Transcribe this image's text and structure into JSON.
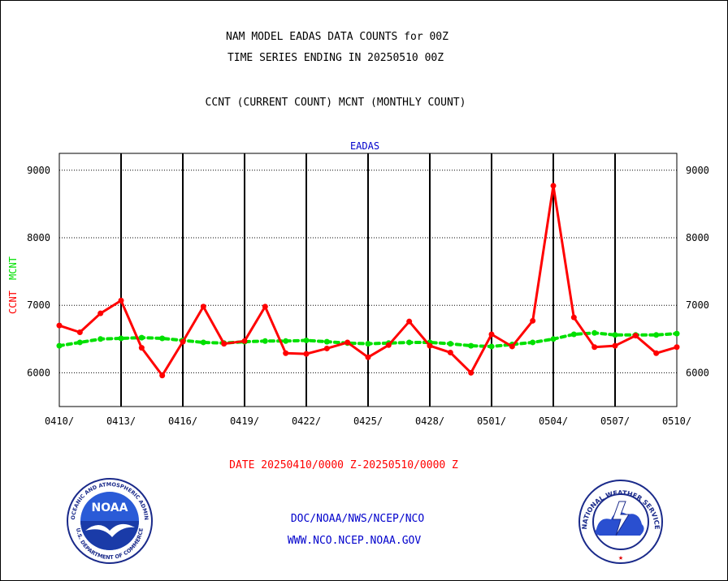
{
  "header": {
    "title_line1": "NAM MODEL EADAS DATA COUNTS for 00Z",
    "title_line2": "TIME SERIES ENDING IN 20250510 00Z",
    "subtitle": "CCNT (CURRENT COUNT) MCNT (MONTHLY COUNT)"
  },
  "footer": {
    "date_range": "DATE 20250410/0000 Z-20250510/0000 Z",
    "org_path": "DOC/NOAA/NWS/NCEP/NCO",
    "website": "WWW.NCO.NCEP.NOAA.GOV"
  },
  "logos": {
    "noaa_text": "NOAA",
    "noaa_ring_text": "NATIONAL OCEANIC AND ATMOSPHERIC ADMINISTRATION",
    "noaa_ring_text_bottom": "U.S. DEPARTMENT OF COMMERCE",
    "nws_ring_text": "NATIONAL WEATHER SERVICE"
  },
  "colors": {
    "ccnt": "#ff0000",
    "mcnt": "#00e000",
    "panel_label": "#0000cc",
    "footer_link": "#0000cc",
    "date_text": "#ff0000",
    "grid": "#000000"
  },
  "chart_data": {
    "type": "line",
    "panel_label": "EADAS",
    "ylabel_ccnt": "CCNT",
    "ylabel_mcnt": "MCNT",
    "ylim": [
      5500,
      9250
    ],
    "yticks": [
      6000,
      7000,
      8000,
      9000
    ],
    "x_tick_labels": [
      "0410/",
      "0413/",
      "0416/",
      "0419/",
      "0422/",
      "0425/",
      "0428/",
      "0501/",
      "0504/",
      "0507/",
      "0510/"
    ],
    "x": [
      "0410",
      "0411",
      "0412",
      "0413",
      "0414",
      "0415",
      "0416",
      "0417",
      "0418",
      "0419",
      "0420",
      "0421",
      "0422",
      "0423",
      "0424",
      "0425",
      "0426",
      "0427",
      "0428",
      "0429",
      "0430",
      "0501",
      "0502",
      "0503",
      "0504",
      "0505",
      "0506",
      "0507",
      "0508",
      "0509",
      "0510"
    ],
    "grid": true,
    "series": [
      {
        "name": "CCNT",
        "values": [
          6700,
          6600,
          6880,
          7070,
          6370,
          5960,
          6460,
          6980,
          6430,
          6470,
          6980,
          6290,
          6280,
          6360,
          6450,
          6230,
          6410,
          6760,
          6400,
          6300,
          6000,
          6570,
          6390,
          6770,
          8770,
          6820,
          6380,
          6400,
          6550,
          6290,
          6380
        ]
      },
      {
        "name": "MCNT",
        "values": [
          6400,
          6450,
          6500,
          6510,
          6520,
          6510,
          6480,
          6450,
          6440,
          6460,
          6470,
          6470,
          6480,
          6460,
          6440,
          6430,
          6440,
          6450,
          6450,
          6430,
          6400,
          6390,
          6420,
          6450,
          6500,
          6570,
          6590,
          6560,
          6560,
          6560,
          6580
        ]
      }
    ]
  }
}
